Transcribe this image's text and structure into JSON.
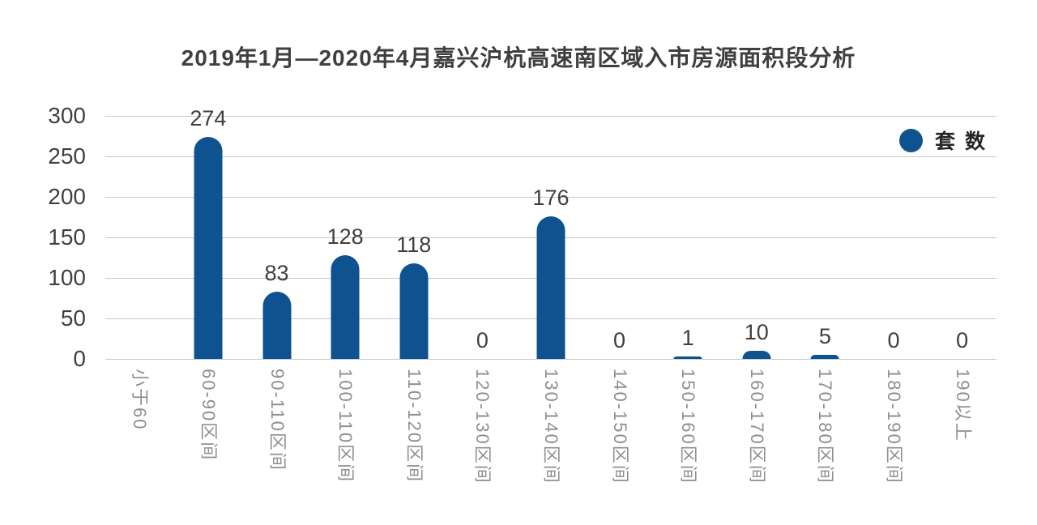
{
  "chart_data": {
    "type": "bar",
    "title": "2019年1月—2020年4月嘉兴沪杭高速南区域入市房源面积段分析",
    "categories": [
      "小于60",
      "60-90区间",
      "90-110区间",
      "100-110区间",
      "110-120区间",
      "120-130区间",
      "130-140区间",
      "140-150区间",
      "150-160区间",
      "160-170区间",
      "170-180区间",
      "180-190区间",
      "190以上"
    ],
    "series": [
      {
        "name": "套数",
        "values": [
          null,
          274,
          83,
          128,
          118,
          0,
          176,
          0,
          1,
          10,
          5,
          0,
          0
        ]
      }
    ],
    "xlabel": "",
    "ylabel": "",
    "ylim": [
      0,
      300
    ],
    "yticks": [
      0,
      50,
      100,
      150,
      200,
      250,
      300
    ],
    "grid": "horizontal",
    "legend_position": "top-right",
    "legend_marker": "circle-icon",
    "colors": {
      "bar": "#0e5290",
      "grid": "#c9c9c9",
      "axis_text": "#3f3f3f",
      "x_label_text": "#8f8f8f",
      "legend_text": "#262626",
      "background": "#ffffff"
    }
  }
}
